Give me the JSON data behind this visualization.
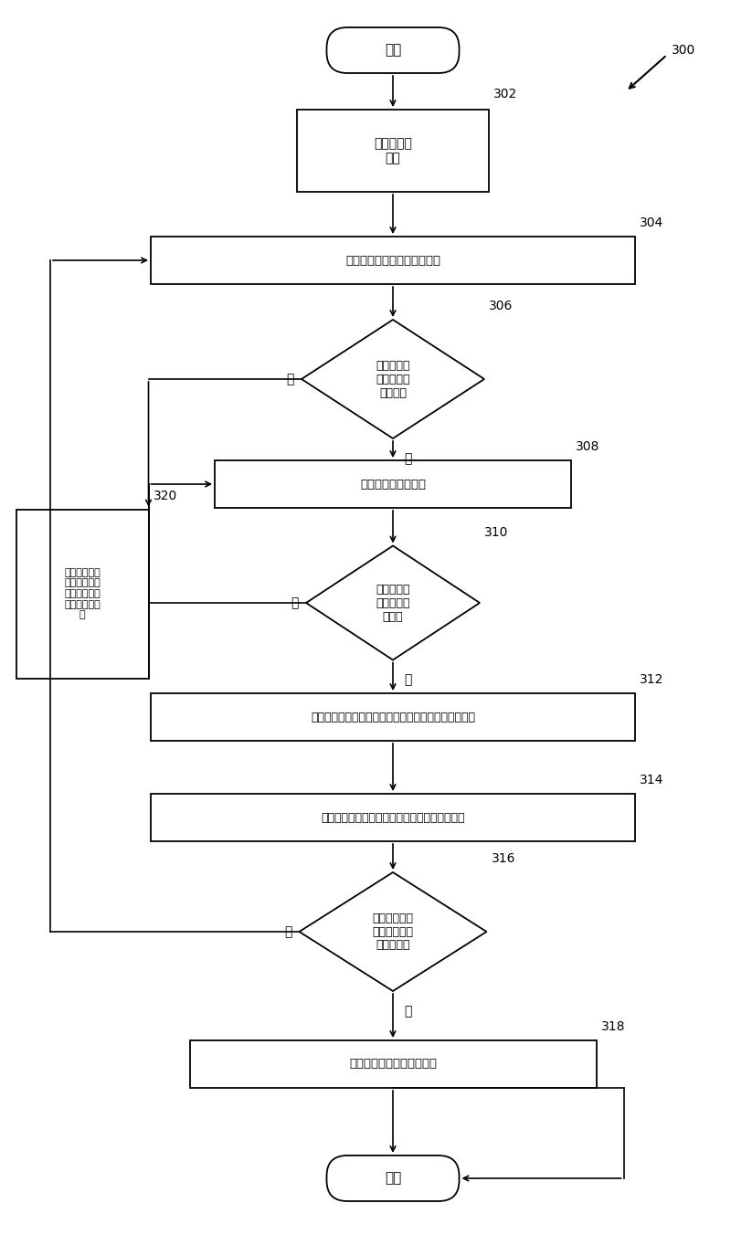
{
  "bg_color": "#ffffff",
  "fig_width": 8.0,
  "fig_height": 13.63,
  "labels": {
    "300": "300",
    "302": "302",
    "304": "304",
    "306": "306",
    "308": "308",
    "310": "310",
    "312": "312",
    "314": "314",
    "316": "316",
    "318": "318",
    "320": "320"
  },
  "texts": {
    "start": "开始",
    "302": "确定发动机\n工况",
    "304": "估算微粒过滤器内的烟粒质量",
    "306": "燃烧储藏在\n微粒过滤器\n里的烟粒",
    "308": "提高微粒过滤器温度",
    "310": "微粒过滤器\n处于期望的\n温度？",
    "312": "传输稀化的排气混合物以氧化微粒过滤器内的烟粒尾量",
    "314": "从氧传感器确定储藏在微粒过滤器内的烟粒质量",
    "316": "判定的烟粒质\n量储藏在微粒\n过滤器内？",
    "318": "指示过多的微粒过滤器泄漏",
    "320": "校正微粒过滤\n器微粒过滤器\n之前和之后的\n氧传感器的差\n异",
    "end": "退出",
    "yes": "是",
    "no": "否"
  }
}
